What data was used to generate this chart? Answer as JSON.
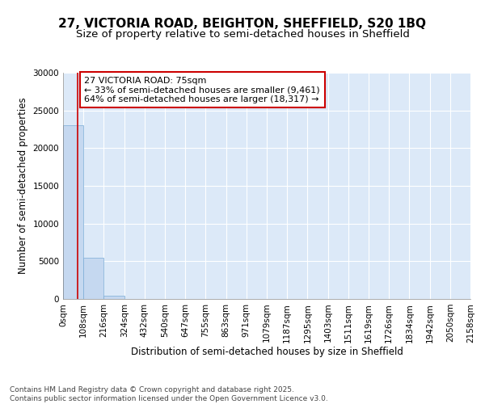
{
  "title_line1": "27, VICTORIA ROAD, BEIGHTON, SHEFFIELD, S20 1BQ",
  "title_line2": "Size of property relative to semi-detached houses in Sheffield",
  "property_size": 75,
  "annotation_text": "27 VICTORIA ROAD: 75sqm\n← 33% of semi-detached houses are smaller (9,461)\n64% of semi-detached houses are larger (18,317) →",
  "bin_edges": [
    0,
    108,
    216,
    324,
    432,
    540,
    647,
    755,
    863,
    971,
    1079,
    1187,
    1295,
    1403,
    1511,
    1619,
    1726,
    1834,
    1942,
    2050,
    2158
  ],
  "bin_counts": [
    23000,
    5500,
    400,
    50,
    20,
    10,
    5,
    3,
    2,
    2,
    1,
    1,
    1,
    1,
    0,
    0,
    0,
    0,
    0,
    0
  ],
  "bar_color": "#c5d8f0",
  "bar_edge_color": "#7aacd6",
  "red_line_color": "#cc0000",
  "annotation_box_color": "#cc0000",
  "ylabel": "Number of semi-detached properties",
  "xlabel": "Distribution of semi-detached houses by size in Sheffield",
  "ylim": [
    0,
    30000
  ],
  "yticks": [
    0,
    5000,
    10000,
    15000,
    20000,
    25000,
    30000
  ],
  "footnote": "Contains HM Land Registry data © Crown copyright and database right 2025.\nContains public sector information licensed under the Open Government Licence v3.0.",
  "bg_color": "#ffffff",
  "plot_bg_color": "#dce9f8",
  "grid_color": "#ffffff",
  "title_fontsize": 11,
  "subtitle_fontsize": 9.5,
  "axis_label_fontsize": 8.5,
  "tick_fontsize": 7.5,
  "annotation_fontsize": 8,
  "footnote_fontsize": 6.5
}
